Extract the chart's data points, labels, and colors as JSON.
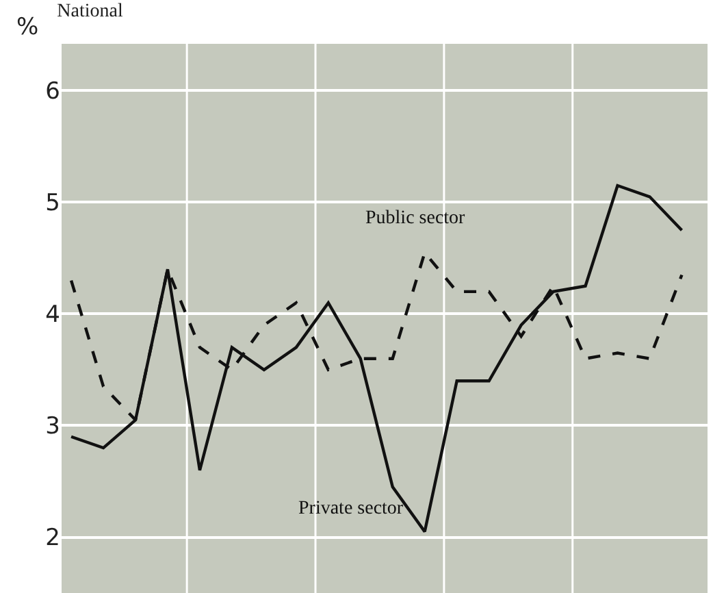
{
  "chart_data": {
    "type": "line",
    "title": "National",
    "ylabel": "%",
    "categories": [
      null,
      null,
      null,
      null,
      null,
      null,
      null,
      null,
      null,
      null,
      null,
      null,
      null,
      null,
      null,
      null,
      null,
      null,
      null,
      null
    ],
    "series": [
      {
        "name": "Private sector",
        "color": "#111111",
        "line_style": "solid",
        "values": [
          2.9,
          2.8,
          3.05,
          4.4,
          2.6,
          3.7,
          3.5,
          3.7,
          4.1,
          3.6,
          2.45,
          2.05,
          3.4,
          3.4,
          3.9,
          4.2,
          4.25,
          5.15,
          5.05,
          4.75
        ]
      },
      {
        "name": "Public sector",
        "color": "#111111",
        "line_style": "dashed",
        "values": [
          4.3,
          3.35,
          3.05,
          4.4,
          3.7,
          3.5,
          3.9,
          4.1,
          3.5,
          3.6,
          3.6,
          4.55,
          4.2,
          4.2,
          3.8,
          4.25,
          3.6,
          3.65,
          3.6,
          4.35
        ]
      }
    ],
    "ylim": [
      1.5,
      6.42
    ],
    "yticks": [
      2,
      3,
      4,
      5,
      6
    ],
    "grid": true,
    "legend": false,
    "marker": "none"
  }
}
